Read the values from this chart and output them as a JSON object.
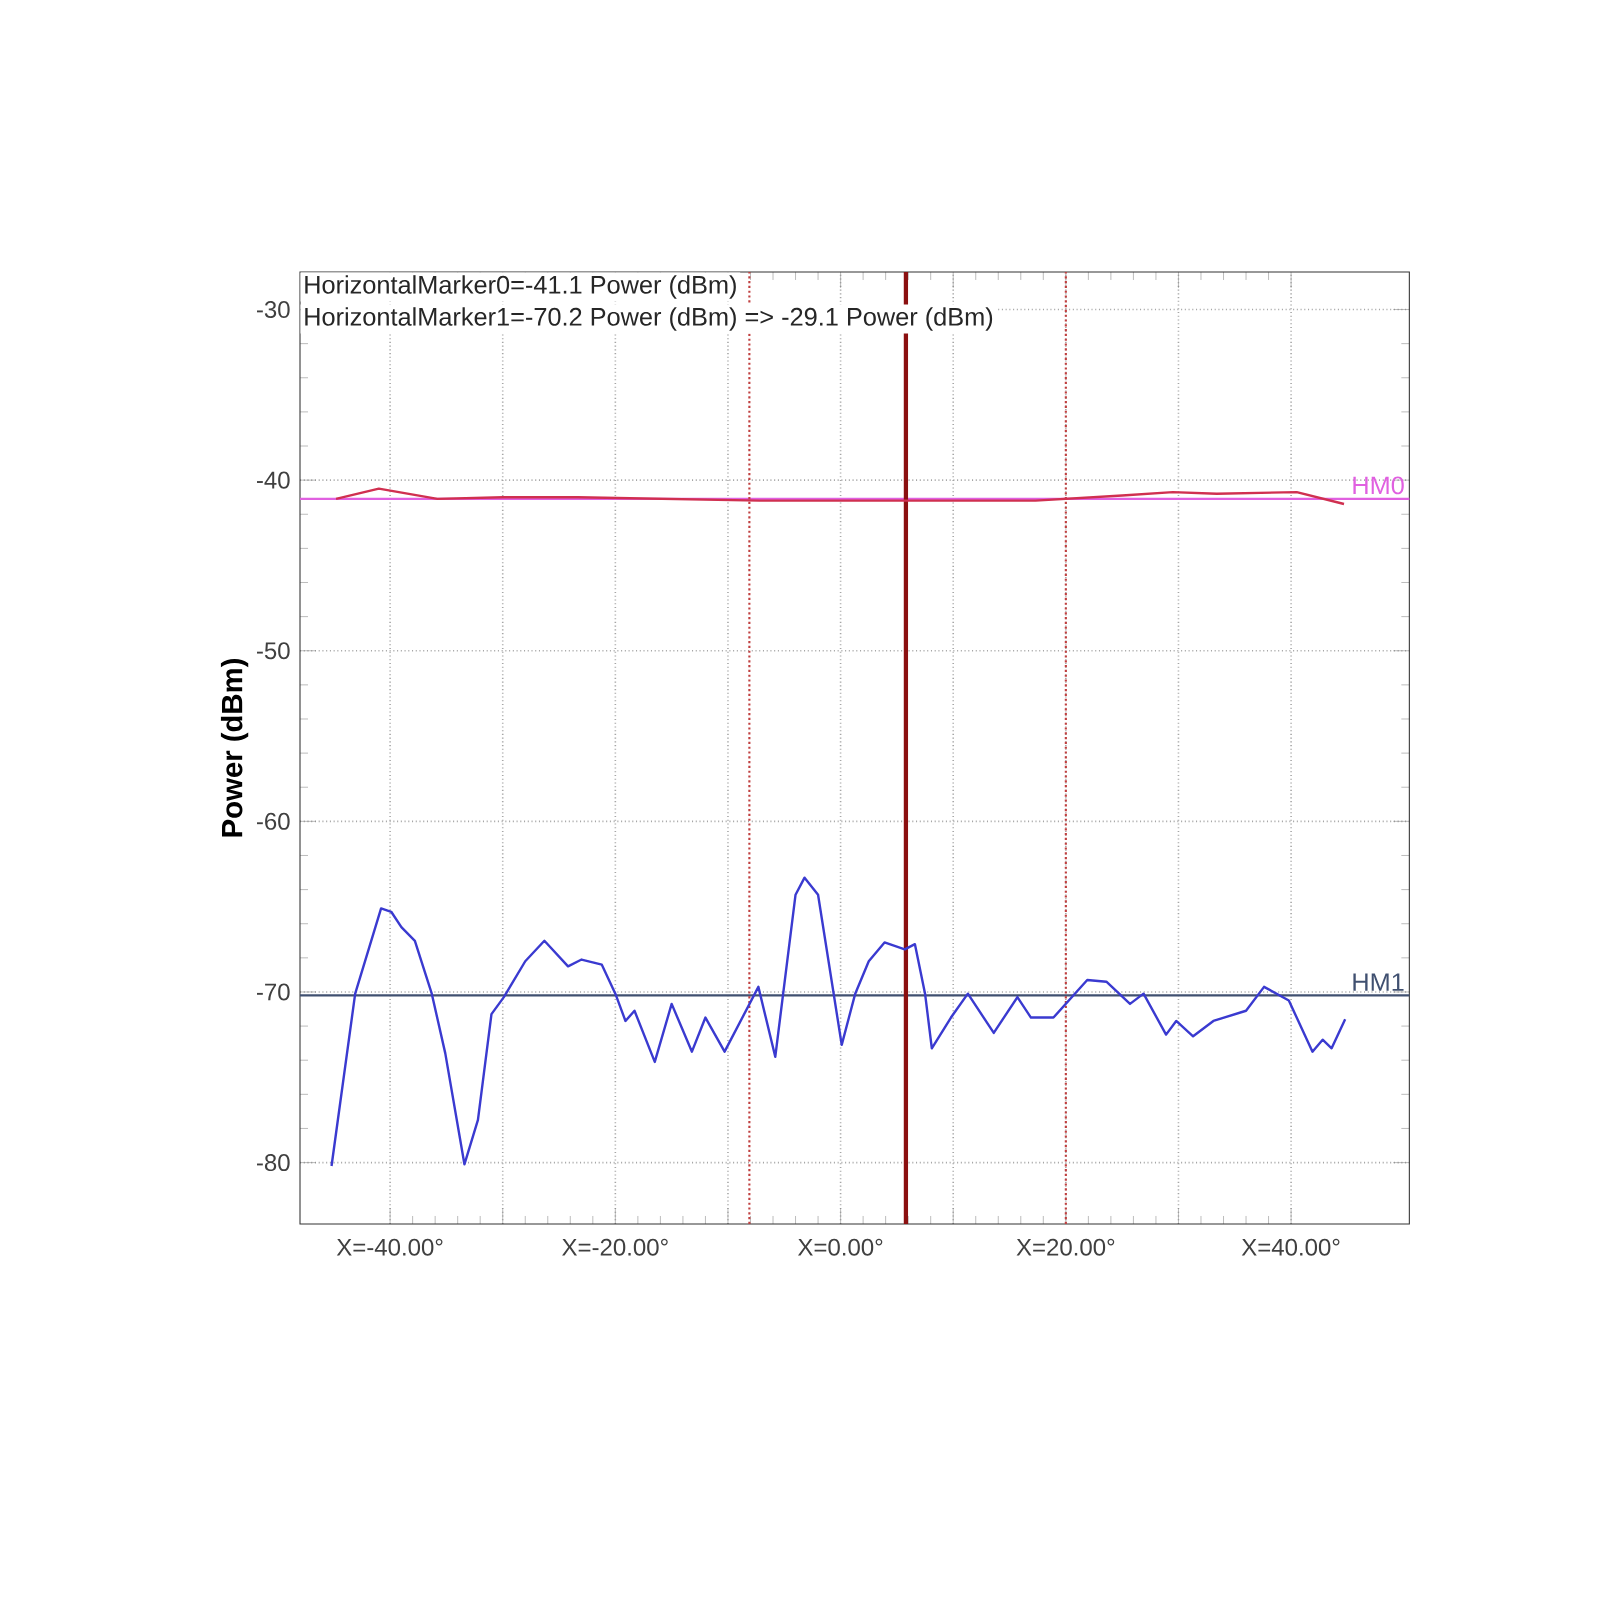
{
  "chart_data": {
    "type": "line",
    "ylabel": "Power (dBm)",
    "annotations": [
      "HorizontalMarker0=-41.1 Power (dBm)",
      "HorizontalMarker1=-70.2 Power (dBm) => -29.1 Power (dBm)"
    ],
    "xlim": [
      -48,
      50.5
    ],
    "ylim": [
      -83.6,
      -27.8
    ],
    "xticks": [
      {
        "value": -40,
        "label": "X=-40.00°"
      },
      {
        "value": -30,
        "label": null
      },
      {
        "value": -20,
        "label": "X=-20.00°"
      },
      {
        "value": -10,
        "label": null
      },
      {
        "value": 0,
        "label": "X=0.00°"
      },
      {
        "value": 10,
        "label": null
      },
      {
        "value": 20,
        "label": "X=20.00°"
      },
      {
        "value": 30,
        "label": null
      },
      {
        "value": 40,
        "label": "X=40.00°"
      }
    ],
    "yticks": [
      -80,
      -70,
      -60,
      -50,
      -40,
      -30
    ],
    "grid": true,
    "marker": "none",
    "line_style": "solid",
    "series": [
      {
        "color": "#d03050",
        "x": [
          -44.8,
          -41.0,
          -35.8,
          -30.0,
          -23.3,
          -7.2,
          17.3,
          25.0,
          29.5,
          33.4,
          40.5,
          44.7
        ],
        "values": [
          -41.1,
          -40.5,
          -41.1,
          -41.0,
          -41.0,
          -41.2,
          -41.2,
          -40.9,
          -40.7,
          -40.8,
          -40.7,
          -41.4
        ]
      },
      {
        "color": "#3a3ad0",
        "x": [
          -45.2,
          -43.1,
          -40.8,
          -39.9,
          -39.0,
          -37.8,
          -36.3,
          -35.1,
          -33.4,
          -32.2,
          -31.0,
          -29.9,
          -28.0,
          -26.3,
          -24.2,
          -23.0,
          -21.2,
          -20.0,
          -19.1,
          -18.3,
          -16.5,
          -15.0,
          -13.2,
          -12.0,
          -10.3,
          -7.3,
          -5.8,
          -4.0,
          -3.2,
          -2.0,
          0.1,
          1.3,
          2.5,
          3.9,
          5.7,
          6.6,
          7.5,
          8.1,
          9.8,
          11.3,
          13.6,
          15.7,
          16.9,
          18.9,
          21.9,
          23.6,
          25.7,
          26.9,
          28.9,
          29.8,
          31.3,
          33.1,
          36.0,
          37.6,
          39.8,
          41.9,
          42.8,
          43.6,
          44.8
        ],
        "values": [
          -80.2,
          -70.1,
          -65.1,
          -65.3,
          -66.2,
          -67.0,
          -70.1,
          -73.6,
          -80.1,
          -77.5,
          -71.3,
          -70.3,
          -68.2,
          -67.0,
          -68.5,
          -68.1,
          -68.4,
          -70.1,
          -71.7,
          -71.1,
          -74.1,
          -70.7,
          -73.5,
          -71.5,
          -73.5,
          -69.7,
          -73.8,
          -64.3,
          -63.3,
          -64.3,
          -73.1,
          -70.1,
          -68.2,
          -67.1,
          -67.5,
          -67.2,
          -70.1,
          -73.3,
          -71.5,
          -70.1,
          -72.4,
          -70.3,
          -71.5,
          -71.5,
          -69.3,
          -69.4,
          -70.7,
          -70.1,
          -72.5,
          -71.7,
          -72.6,
          -71.7,
          -71.1,
          -69.7,
          -70.5,
          -73.5,
          -72.8,
          -73.3,
          -71.6
        ]
      }
    ],
    "ref_lines": [
      {
        "axis": "y",
        "value": -41.1,
        "label": "HM0",
        "color": "#e060e0",
        "line_style": "solid"
      },
      {
        "axis": "y",
        "value": -70.2,
        "label": "HM1",
        "color": "#405070",
        "line_style": "solid"
      },
      {
        "axis": "x",
        "value": 5.8,
        "color": "#8b1010",
        "line_style": "solid"
      },
      {
        "axis": "x",
        "value": -8.1,
        "color": "#c04040",
        "line_style": "dotted"
      },
      {
        "axis": "x",
        "value": 20,
        "color": "#c04040",
        "line_style": "dotted"
      }
    ]
  }
}
